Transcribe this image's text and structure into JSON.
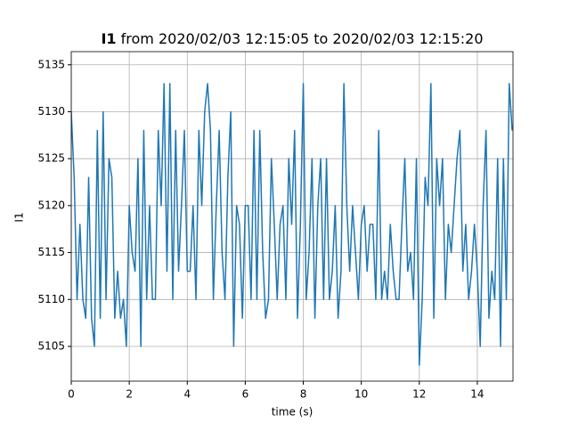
{
  "chart_data": {
    "type": "line",
    "title_bold": "I1",
    "title": "from 2020/02/03 12:15:05 to 2020/02/03 12:15:20",
    "xlabel": "time (s)",
    "ylabel": "I1",
    "x": [
      0.0,
      0.1,
      0.2,
      0.3,
      0.4,
      0.5,
      0.6,
      0.7,
      0.8,
      0.9,
      1.0,
      1.1,
      1.2,
      1.3,
      1.4,
      1.5,
      1.6,
      1.7,
      1.8,
      1.9,
      2.0,
      2.1,
      2.2,
      2.3,
      2.4,
      2.5,
      2.6,
      2.7,
      2.8,
      2.9,
      3.0,
      3.1,
      3.2,
      3.3,
      3.4,
      3.5,
      3.6,
      3.7,
      3.8,
      3.9,
      4.0,
      4.1,
      4.2,
      4.3,
      4.4,
      4.5,
      4.6,
      4.7,
      4.8,
      4.9,
      5.0,
      5.1,
      5.2,
      5.3,
      5.4,
      5.5,
      5.6,
      5.7,
      5.8,
      5.9,
      6.0,
      6.1,
      6.2,
      6.3,
      6.4,
      6.5,
      6.6,
      6.7,
      6.8,
      6.9,
      7.0,
      7.1,
      7.2,
      7.3,
      7.4,
      7.5,
      7.6,
      7.7,
      7.8,
      7.9,
      8.0,
      8.1,
      8.2,
      8.3,
      8.4,
      8.5,
      8.6,
      8.7,
      8.8,
      8.9,
      9.0,
      9.1,
      9.2,
      9.3,
      9.4,
      9.5,
      9.6,
      9.7,
      9.8,
      9.9,
      10.0,
      10.1,
      10.2,
      10.3,
      10.4,
      10.5,
      10.6,
      10.7,
      10.8,
      10.9,
      11.0,
      11.1,
      11.2,
      11.3,
      11.4,
      11.5,
      11.6,
      11.7,
      11.8,
      11.9,
      12.0,
      12.1,
      12.2,
      12.3,
      12.4,
      12.5,
      12.6,
      12.7,
      12.8,
      12.9,
      13.0,
      13.1,
      13.2,
      13.3,
      13.4,
      13.5,
      13.6,
      13.7,
      13.8,
      13.9,
      14.0,
      14.1,
      14.2,
      14.3,
      14.4,
      14.5,
      14.6,
      14.7,
      14.8,
      14.9,
      15.0,
      15.1,
      15.2
    ],
    "series": [
      {
        "name": "I1",
        "color": "#1f77b4",
        "values": [
          5130,
          5123,
          5110,
          5118,
          5110,
          5108,
          5123,
          5108,
          5105,
          5128,
          5108,
          5130,
          5110,
          5125,
          5123,
          5108,
          5113,
          5108,
          5110,
          5105,
          5120,
          5115,
          5113,
          5125,
          5105,
          5128,
          5110,
          5120,
          5110,
          5110,
          5128,
          5120,
          5133,
          5113,
          5133,
          5110,
          5128,
          5113,
          5120,
          5128,
          5113,
          5113,
          5120,
          5110,
          5128,
          5120,
          5130,
          5133,
          5128,
          5110,
          5120,
          5128,
          5115,
          5110,
          5123,
          5130,
          5105,
          5120,
          5118,
          5108,
          5120,
          5120,
          5110,
          5128,
          5110,
          5128,
          5115,
          5108,
          5110,
          5125,
          5118,
          5110,
          5118,
          5120,
          5110,
          5125,
          5118,
          5128,
          5108,
          5118,
          5133,
          5110,
          5115,
          5125,
          5108,
          5120,
          5125,
          5110,
          5125,
          5110,
          5113,
          5120,
          5108,
          5113,
          5133,
          5120,
          5113,
          5120,
          5115,
          5110,
          5118,
          5120,
          5113,
          5118,
          5118,
          5110,
          5128,
          5110,
          5113,
          5110,
          5118,
          5113,
          5110,
          5110,
          5118,
          5125,
          5113,
          5115,
          5110,
          5125,
          5103,
          5110,
          5123,
          5120,
          5133,
          5108,
          5125,
          5120,
          5125,
          5110,
          5118,
          5115,
          5120,
          5125,
          5128,
          5113,
          5118,
          5110,
          5113,
          5118,
          5113,
          5105,
          5120,
          5128,
          5108,
          5113,
          5110,
          5125,
          5105,
          5125,
          5110,
          5133,
          5128
        ]
      }
    ],
    "xlim": [
      0,
      15.23
    ],
    "ylim": [
      5101.3,
      5136.4
    ],
    "xticks": [
      0,
      2,
      4,
      6,
      8,
      10,
      12,
      14
    ],
    "yticks": [
      5105,
      5110,
      5115,
      5120,
      5125,
      5130,
      5135
    ],
    "grid": true
  }
}
